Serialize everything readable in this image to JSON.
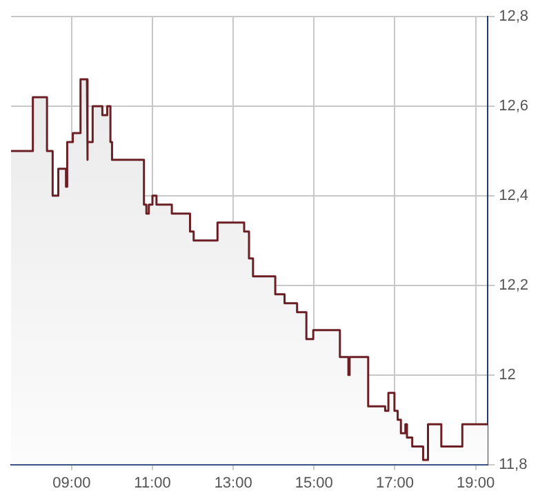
{
  "chart_data": {
    "type": "area",
    "x": [
      7.5,
      8.04,
      8.04,
      8.39,
      8.39,
      8.53,
      8.53,
      8.67,
      8.67,
      8.86,
      8.86,
      8.89,
      8.89,
      9.03,
      9.03,
      9.22,
      9.22,
      9.38,
      9.38,
      9.4,
      9.4,
      9.52,
      9.52,
      9.76,
      9.76,
      9.88,
      9.88,
      9.96,
      9.96,
      10.0,
      10.0,
      10.79,
      10.79,
      10.85,
      10.85,
      10.91,
      10.91,
      11.0,
      11.0,
      11.1,
      11.1,
      11.48,
      11.48,
      11.93,
      11.93,
      12.02,
      12.02,
      12.61,
      12.61,
      13.27,
      13.27,
      13.39,
      13.39,
      13.49,
      13.49,
      14.04,
      14.04,
      14.27,
      14.27,
      14.58,
      14.58,
      14.81,
      14.81,
      14.98,
      14.98,
      15.64,
      15.64,
      15.85,
      15.85,
      15.88,
      15.88,
      16.34,
      16.34,
      16.76,
      16.76,
      16.84,
      16.84,
      16.99,
      16.99,
      17.07,
      17.07,
      17.15,
      17.15,
      17.26,
      17.26,
      17.3,
      17.3,
      17.43,
      17.43,
      17.7,
      17.7,
      17.82,
      17.82,
      18.15,
      18.15,
      18.67,
      18.67,
      19.3
    ],
    "series": [
      {
        "color": "#6b1f24",
        "values": [
          12.5,
          12.5,
          12.62,
          12.62,
          12.5,
          12.5,
          12.4,
          12.4,
          12.46,
          12.46,
          12.42,
          12.42,
          12.52,
          12.52,
          12.54,
          12.54,
          12.66,
          12.66,
          12.48,
          12.48,
          12.52,
          12.52,
          12.6,
          12.6,
          12.58,
          12.58,
          12.6,
          12.6,
          12.52,
          12.52,
          12.48,
          12.48,
          12.38,
          12.38,
          12.36,
          12.36,
          12.38,
          12.38,
          12.4,
          12.4,
          12.38,
          12.38,
          12.36,
          12.36,
          12.32,
          12.32,
          12.3,
          12.3,
          12.34,
          12.34,
          12.32,
          12.32,
          12.26,
          12.26,
          12.22,
          12.22,
          12.18,
          12.18,
          12.16,
          12.16,
          12.14,
          12.14,
          12.08,
          12.08,
          12.1,
          12.1,
          12.04,
          12.04,
          12.0,
          12.0,
          12.04,
          12.04,
          11.93,
          11.93,
          11.92,
          11.92,
          11.96,
          11.96,
          11.92,
          11.92,
          11.9,
          11.9,
          11.87,
          11.87,
          11.89,
          11.89,
          11.86,
          11.86,
          11.84,
          11.84,
          11.81,
          11.81,
          11.89,
          11.89,
          11.84,
          11.84,
          11.89,
          11.89
        ]
      }
    ],
    "xlim": [
      7.5,
      19.3
    ],
    "xticks": [
      {
        "value": 9,
        "label": "09:00"
      },
      {
        "value": 11,
        "label": "11:00"
      },
      {
        "value": 13,
        "label": "13:00"
      },
      {
        "value": 15,
        "label": "15:00"
      },
      {
        "value": 17,
        "label": "17:00"
      },
      {
        "value": 19,
        "label": "19:00"
      }
    ],
    "ylim": [
      11.8,
      12.8
    ],
    "yticks": [
      {
        "value": 11.8,
        "label": "11,8"
      },
      {
        "value": 12,
        "label": "12"
      },
      {
        "value": 12.2,
        "label": "12,2"
      },
      {
        "value": 12.4,
        "label": "12,4"
      },
      {
        "value": 12.6,
        "label": "12,6"
      },
      {
        "value": 12.8,
        "label": "12,8"
      }
    ],
    "grid": true,
    "legend": false
  }
}
